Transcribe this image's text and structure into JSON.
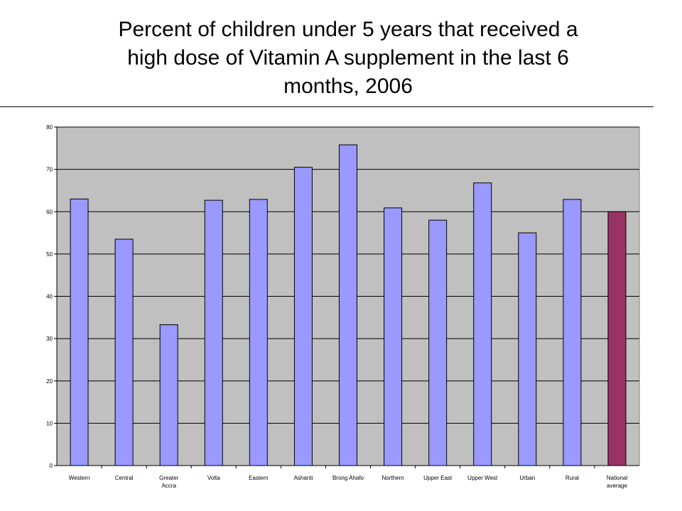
{
  "chart_data": {
    "type": "bar",
    "title": "Percent of children under 5 years that received a\nhigh dose of Vitamin A supplement in the last 6\nmonths, 2006",
    "categories": [
      "Western",
      "Central",
      "Greater\nAccra",
      "Volta",
      "Eastern",
      "Ashanti",
      "Brong Ahafo",
      "Northern",
      "Upper East",
      "Upper West",
      "Urban",
      "Rural",
      "National\naverage"
    ],
    "values": [
      63,
      53.5,
      33.3,
      62.7,
      62.9,
      70.5,
      75.8,
      60.9,
      58,
      66.8,
      55,
      62.9,
      60
    ],
    "ylim": [
      0,
      80
    ],
    "yticks": [
      0,
      10,
      20,
      30,
      40,
      50,
      60,
      70,
      80
    ],
    "xlabel": "",
    "ylabel": "",
    "grid": true,
    "legend": "none",
    "colors": {
      "bar": "#9999ff",
      "highlight_bar": "#993366",
      "plot_background": "#c0c0c0",
      "gridline": "#000000"
    },
    "highlight_index": 12
  }
}
